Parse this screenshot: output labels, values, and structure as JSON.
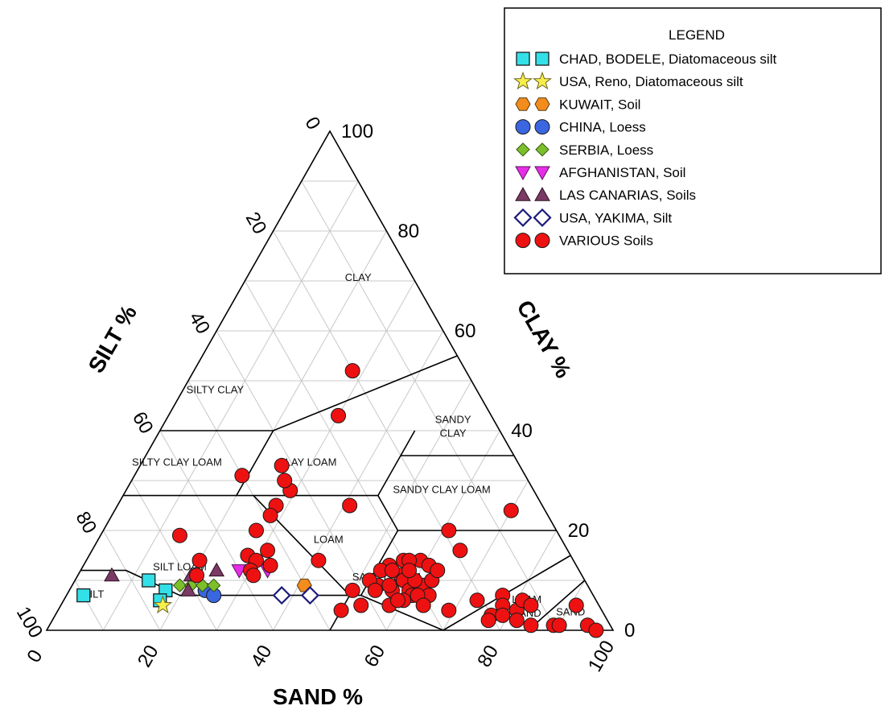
{
  "chart_data": {
    "type": "scatter",
    "subtype": "ternary",
    "axes": {
      "sand": {
        "label": "SAND %",
        "ticks": [
          "0",
          "20",
          "40",
          "60",
          "80",
          "100"
        ]
      },
      "clay": {
        "label": "CLAY %",
        "ticks": [
          "0",
          "20",
          "40",
          "60",
          "80",
          "100"
        ]
      },
      "silt": {
        "label": "SILT %",
        "ticks": [
          "0",
          "20",
          "40",
          "60",
          "80",
          "100"
        ]
      }
    },
    "grid": true,
    "legend": {
      "title": "LEGEND",
      "position": "top-right"
    },
    "regions": [
      "CLAY",
      "SILTY CLAY",
      "SANDY CLAY",
      "SILTY CLAY LOAM",
      "CLAY LOAM",
      "SANDY CLAY LOAM",
      "LOAM",
      "SILT LOAM",
      "SILT",
      "SANDY LOAM",
      "LOAM SAND",
      "SAND"
    ],
    "series": [
      {
        "name": "CHAD, BODELE, Diatomaceous silt",
        "marker": "square",
        "color": "#33e0e8",
        "points": [
          [
            3,
            7
          ],
          [
            13,
            10
          ],
          [
            17,
            8
          ],
          [
            17,
            6
          ]
        ]
      },
      {
        "name": "USA, Reno, Diatomaceous silt",
        "marker": "star",
        "color": "#f7ee4a",
        "points": [
          [
            18,
            5
          ]
        ]
      },
      {
        "name": "KUWAIT, Soil",
        "marker": "hexagon",
        "color": "#f28c1c",
        "points": [
          [
            41,
            9
          ]
        ]
      },
      {
        "name": "CHINA, Loess",
        "marker": "circle",
        "color": "#3a66e0",
        "points": [
          [
            24,
            8
          ],
          [
            26,
            7
          ]
        ]
      },
      {
        "name": "SERBIA, Loess",
        "marker": "diamond",
        "color": "#7cbf2a",
        "points": [
          [
            19,
            9
          ],
          [
            21,
            9
          ],
          [
            23,
            9
          ],
          [
            25,
            9
          ]
        ]
      },
      {
        "name": "AFGHANISTAN, Soil",
        "marker": "triangle-down",
        "color": "#e62ee6",
        "points": [
          [
            28,
            12
          ],
          [
            33,
            12
          ]
        ]
      },
      {
        "name": "LAS CANARIAS, Soils",
        "marker": "triangle",
        "color": "#7a3a64",
        "points": [
          [
            6,
            11
          ],
          [
            20,
            11
          ],
          [
            24,
            12
          ],
          [
            21,
            8
          ]
        ]
      },
      {
        "name": "USA, YAKIMA, Silt",
        "marker": "diamond-open",
        "color": "#1a1a7a",
        "points": [
          [
            38,
            7
          ],
          [
            43,
            7
          ]
        ]
      },
      {
        "name": "VARIOUS Soils",
        "marker": "circle",
        "color": "#ee1111",
        "points": [
          [
            28,
            52
          ],
          [
            30,
            43
          ],
          [
            19,
            31
          ],
          [
            25,
            33
          ],
          [
            29,
            28
          ],
          [
            28,
            25
          ],
          [
            27,
            30
          ],
          [
            28,
            23
          ],
          [
            27,
            20
          ],
          [
            14,
            19
          ],
          [
            33,
            13
          ],
          [
            41,
            14
          ],
          [
            41,
            25
          ],
          [
            31,
            16
          ],
          [
            28,
            15
          ],
          [
            30,
            14
          ],
          [
            20,
            14
          ],
          [
            30,
            12
          ],
          [
            31,
            11
          ],
          [
            21,
            11
          ],
          [
            50,
            8
          ],
          [
            54,
            13
          ],
          [
            53,
            12
          ],
          [
            57,
            11
          ],
          [
            58,
            10
          ],
          [
            56,
            14
          ],
          [
            57,
            8
          ],
          [
            60,
            8
          ],
          [
            59,
            14
          ],
          [
            61,
            7
          ],
          [
            62,
            7
          ],
          [
            60,
            6
          ],
          [
            63,
            10
          ],
          [
            62,
            9
          ],
          [
            61,
            13
          ],
          [
            64,
            7
          ],
          [
            61,
            20
          ],
          [
            65,
            16
          ],
          [
            63,
            10
          ],
          [
            70,
            24
          ],
          [
            73,
            6
          ],
          [
            77,
            7
          ],
          [
            78,
            5
          ],
          [
            77,
            3
          ],
          [
            77,
            2
          ],
          [
            79,
            3
          ],
          [
            81,
            4
          ],
          [
            82,
            2
          ],
          [
            81,
            6
          ],
          [
            83,
            5
          ],
          [
            85,
            1
          ],
          [
            89,
            1
          ],
          [
            90,
            1
          ],
          [
            91,
            5
          ],
          [
            95,
            1
          ],
          [
            97,
            0
          ],
          [
            69,
            4
          ],
          [
            53,
            5
          ],
          [
            54,
            9
          ],
          [
            56,
            9
          ],
          [
            58,
            5
          ],
          [
            62,
            7
          ],
          [
            60,
            10
          ],
          [
            63,
            12
          ],
          [
            64,
            5
          ],
          [
            52,
            10
          ],
          [
            50,
            4
          ],
          [
            59,
            6
          ],
          [
            57,
            14
          ],
          [
            54,
            8
          ],
          [
            55,
            12
          ],
          [
            58,
            12
          ]
        ]
      }
    ]
  }
}
